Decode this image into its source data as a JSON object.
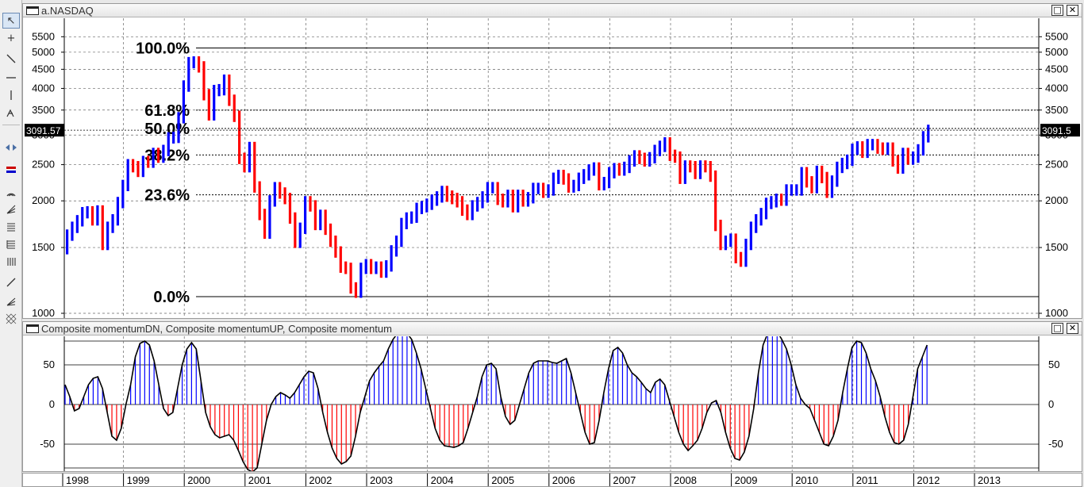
{
  "toolbar": {
    "tools": [
      "pointer-tool",
      "crosshair-tool",
      "trendline-tool",
      "horizontal-line-tool",
      "vertical-line-tool",
      "fibonacci-time-tool",
      "scroll-arrows-tool",
      "bar-style-tool",
      "arc-tool",
      "fan-tool",
      "fibonacci-retracement-tool",
      "speed-lines-tool",
      "parallel-lines-tool",
      "line-tool",
      "gann-fan-tool",
      "pattern-tool"
    ]
  },
  "price_pane": {
    "title": "a.NASDAQ",
    "window_buttons": {
      "restore": "□",
      "close": "✕"
    },
    "last_price_left": "3091.57",
    "last_price_right": "3091.5",
    "colors": {
      "up": "#0000ff",
      "down": "#ff0000"
    }
  },
  "momentum_pane": {
    "title": "Composite momentumDN, Composite momentumUP, Composite momentum",
    "window_buttons": {
      "restore": "□",
      "close": "✕"
    }
  },
  "chart_data": [
    {
      "type": "bar",
      "title": "a.NASDAQ",
      "scale": "log",
      "ylim": [
        1000,
        5700
      ],
      "yticks": [
        5500,
        5000,
        4500,
        4000,
        3500,
        3000,
        2500,
        2000,
        1500,
        1000
      ],
      "x_tick_labels": [
        "1998",
        "1999",
        "2000",
        "2001",
        "2002",
        "2003",
        "2004",
        "2005",
        "2006",
        "2007",
        "2008",
        "2009",
        "2010",
        "2011",
        "2012",
        "2013"
      ],
      "fibonacci_levels": [
        {
          "label": "100.0%",
          "value": 5132
        },
        {
          "label": "61.8%",
          "value": 3499
        },
        {
          "label": "50.0%",
          "value": 3124
        },
        {
          "label": "38.2%",
          "value": 2653
        },
        {
          "label": "23.6%",
          "value": 2076
        },
        {
          "label": "0.0%",
          "value": 1108
        }
      ],
      "last_value": 3091.57,
      "grid": true,
      "monthly_closes": [
        1620,
        1700,
        1770,
        1860,
        1870,
        1780,
        1880,
        1530,
        1700,
        1780,
        1980,
        2200,
        2500,
        2470,
        2400,
        2550,
        2540,
        2680,
        2620,
        2730,
        2950,
        2960,
        3340,
        4060,
        4690,
        4710,
        4570,
        3850,
        3400,
        3950,
        3970,
        4210,
        3720,
        3370,
        2600,
        2470,
        2780,
        2180,
        1840,
        1640,
        2000,
        2170,
        2100,
        2030,
        1800,
        1550,
        1690,
        1990,
        1940,
        1730,
        1830,
        1680,
        1560,
        1460,
        1330,
        1320,
        1170,
        1140,
        1320,
        1350,
        1320,
        1330,
        1290,
        1340,
        1470,
        1560,
        1740,
        1800,
        1810,
        1910,
        1930,
        1960,
        2010,
        2050,
        2120,
        2060,
        2030,
        1990,
        1890,
        1840,
        1940,
        1980,
        2050,
        2170,
        2170,
        2020,
        1990,
        2070,
        1930,
        2070,
        2000,
        2040,
        2160,
        2160,
        2110,
        2140,
        2300,
        2340,
        2290,
        2180,
        2200,
        2300,
        2350,
        2420,
        2450,
        2210,
        2240,
        2380,
        2440,
        2420,
        2460,
        2560,
        2640,
        2600,
        2560,
        2610,
        2730,
        2800,
        2860,
        2650,
        2620,
        2300,
        2480,
        2470,
        2370,
        2480,
        2470,
        2330,
        1720,
        1530,
        1560,
        1580,
        1410,
        1380,
        1530,
        1700,
        1780,
        1850,
        1970,
        1990,
        2020,
        2010,
        2140,
        2140,
        2140,
        2380,
        2250,
        2170,
        2400,
        2310,
        2110,
        2260,
        2460,
        2520,
        2570,
        2750,
        2790,
        2700,
        2830,
        2830,
        2770,
        2750,
        2770,
        2560,
        2450,
        2680,
        2590,
        2620,
        2740,
        2970,
        3090
      ]
    },
    {
      "type": "area",
      "title": "Composite momentumDN, Composite momentumUP, Composite momentum",
      "ylim": [
        -80,
        80
      ],
      "yticks": [
        50,
        0,
        -50
      ],
      "series": [
        {
          "name": "Composite momentumDN",
          "color": "#ff0000"
        },
        {
          "name": "Composite momentumUP",
          "color": "#0000ff"
        },
        {
          "name": "Composite momentum",
          "color": "#000000"
        }
      ],
      "values": [
        25,
        10,
        -8,
        -5,
        10,
        25,
        33,
        35,
        20,
        -10,
        -40,
        -45,
        -30,
        0,
        25,
        60,
        77,
        80,
        75,
        55,
        25,
        -5,
        -14,
        -10,
        20,
        50,
        70,
        78,
        70,
        30,
        -10,
        -28,
        -38,
        -42,
        -40,
        -38,
        -45,
        -58,
        -72,
        -82,
        -85,
        -80,
        -50,
        -20,
        0,
        10,
        15,
        12,
        8,
        15,
        25,
        35,
        42,
        40,
        20,
        -10,
        -35,
        -55,
        -68,
        -75,
        -72,
        -65,
        -40,
        -10,
        10,
        30,
        40,
        48,
        55,
        70,
        82,
        90,
        92,
        90,
        82,
        65,
        45,
        20,
        -5,
        -30,
        -45,
        -52,
        -53,
        -54,
        -52,
        -48,
        -30,
        -10,
        10,
        35,
        50,
        52,
        45,
        10,
        -15,
        -25,
        -20,
        0,
        20,
        40,
        52,
        55,
        55,
        55,
        53,
        52,
        55,
        58,
        40,
        15,
        -10,
        -35,
        -50,
        -48,
        -20,
        15,
        45,
        68,
        72,
        65,
        50,
        40,
        35,
        28,
        20,
        15,
        28,
        32,
        25,
        5,
        -15,
        -35,
        -50,
        -58,
        -52,
        -45,
        -30,
        -10,
        2,
        5,
        -10,
        -35,
        -55,
        -68,
        -70,
        -60,
        -40,
        -5,
        40,
        75,
        90,
        95,
        92,
        82,
        70,
        50,
        25,
        8,
        0,
        -5,
        -20,
        -35,
        -50,
        -52,
        -40,
        -20,
        15,
        45,
        72,
        80,
        78,
        65,
        45,
        30,
        10,
        -15,
        -35,
        -48,
        -50,
        -45,
        -25,
        10,
        45,
        60,
        75
      ]
    }
  ]
}
